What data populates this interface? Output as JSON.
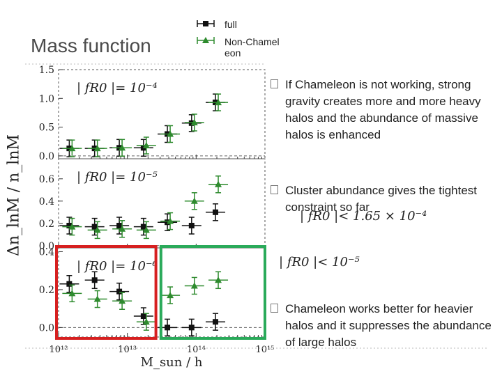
{
  "title": "Mass function",
  "legend": [
    {
      "label": "full",
      "color": "#111111"
    },
    {
      "label": "Non-Chameleon",
      "color": "#2e8b2e"
    }
  ],
  "bullets": [
    "If Chameleon is not working, strong gravity creates more and more heavy halos and the abundance of massive halos is enhanced",
    "Cluster abundance gives the tightest constraint so far",
    "Chameleon works better for heavier halos and it suppresses the abundance of large halos"
  ],
  "formulas": {
    "constraint": "| fR0 |< 1.65 × 10⁻⁴",
    "target": "| fR0 |< 10⁻⁵"
  },
  "axes": {
    "ylabel": "Δn_lnM / n_lnM",
    "xlabel": "M_sun / h"
  },
  "chart_data": [
    {
      "type": "scatter",
      "panel_label": "| fR0 |= 10⁻⁴",
      "x_scale": "log",
      "xlim": [
        1000000000000.0,
        1000000000000000.0
      ],
      "ylim": [
        -0.05,
        1.5
      ],
      "yticks": [
        "0.0",
        "0.5",
        "1.0",
        "1.5"
      ],
      "ytick_values": [
        0.0,
        0.5,
        1.0,
        1.5
      ],
      "series": [
        {
          "name": "full",
          "color": "#111111",
          "marker": "square",
          "x": [
            1500000000000.0,
            3500000000000.0,
            8000000000000.0,
            18000000000000.0,
            40000000000000.0,
            90000000000000.0,
            200000000000000.0
          ],
          "y": [
            0.13,
            0.13,
            0.14,
            0.14,
            0.38,
            0.57,
            0.93
          ]
        },
        {
          "name": "Non-Chameleon",
          "color": "#2e8b2e",
          "marker": "triangle",
          "x": [
            1500000000000.0,
            3500000000000.0,
            8000000000000.0,
            18000000000000.0,
            40000000000000.0,
            90000000000000.0,
            200000000000000.0
          ],
          "y": [
            0.13,
            0.13,
            0.14,
            0.18,
            0.38,
            0.58,
            0.93
          ]
        }
      ]
    },
    {
      "type": "scatter",
      "panel_label": "| fR0 |= 10⁻⁵",
      "x_scale": "log",
      "xlim": [
        1000000000000.0,
        1000000000000000.0
      ],
      "ylim": [
        -0.02,
        0.78
      ],
      "yticks": [
        "0.0",
        "0.2",
        "0.4",
        "0.6"
      ],
      "ytick_values": [
        0.0,
        0.2,
        0.4,
        0.6
      ],
      "series": [
        {
          "name": "full",
          "color": "#111111",
          "marker": "square",
          "x": [
            1500000000000.0,
            3500000000000.0,
            8000000000000.0,
            18000000000000.0,
            40000000000000.0,
            90000000000000.0,
            200000000000000.0
          ],
          "y": [
            0.18,
            0.17,
            0.18,
            0.17,
            0.21,
            0.18,
            0.3
          ]
        },
        {
          "name": "Non-Chameleon",
          "color": "#2e8b2e",
          "marker": "triangle",
          "x": [
            1500000000000.0,
            3500000000000.0,
            8000000000000.0,
            18000000000000.0,
            40000000000000.0,
            90000000000000.0,
            200000000000000.0
          ],
          "y": [
            0.17,
            0.14,
            0.15,
            0.14,
            0.22,
            0.4,
            0.55
          ]
        }
      ]
    },
    {
      "type": "scatter",
      "panel_label": "| fR0 |= 10⁻⁶",
      "x_scale": "log",
      "xlim": [
        1000000000000.0,
        1000000000000000.0
      ],
      "ylim": [
        -0.05,
        0.42
      ],
      "yticks": [
        "0.0",
        "0.2",
        "0.4"
      ],
      "ytick_values": [
        0.0,
        0.2,
        0.4
      ],
      "xticks": [
        "10¹²",
        "10¹³",
        "10¹⁴",
        "10¹⁵"
      ],
      "xtick_values": [
        1000000000000.0,
        10000000000000.0,
        100000000000000.0,
        1000000000000000.0
      ],
      "series": [
        {
          "name": "full",
          "color": "#111111",
          "marker": "square",
          "x": [
            1500000000000.0,
            3500000000000.0,
            8000000000000.0,
            18000000000000.0,
            40000000000000.0,
            90000000000000.0,
            200000000000000.0
          ],
          "y": [
            0.23,
            0.25,
            0.19,
            0.06,
            0.0,
            0.0,
            0.03
          ]
        },
        {
          "name": "Non-Chameleon",
          "color": "#2e8b2e",
          "marker": "triangle",
          "x": [
            1500000000000.0,
            3500000000000.0,
            8000000000000.0,
            18000000000000.0,
            40000000000000.0,
            90000000000000.0,
            200000000000000.0
          ],
          "y": [
            0.18,
            0.15,
            0.14,
            0.03,
            0.17,
            0.22,
            0.25
          ]
        }
      ]
    }
  ],
  "highlight_boxes": [
    {
      "color": "#d62020",
      "x_range": [
        1000000000000.0,
        26000000000000.0
      ],
      "panel": 2
    },
    {
      "color": "#2aaa5a",
      "x_range": [
        33000000000000.0,
        1000000000000000.0
      ],
      "panel": 2
    }
  ]
}
